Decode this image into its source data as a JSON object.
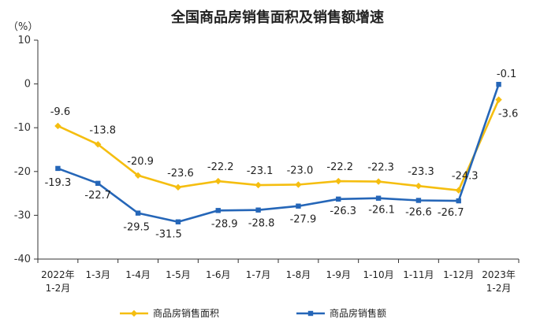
{
  "chart_data": {
    "type": "line",
    "title": "全国商品房销售面积及销售额增速",
    "unit": "（%）",
    "ylim": [
      -40,
      10
    ],
    "yticks": [
      "10",
      "0",
      "-10",
      "-20",
      "-30",
      "-40"
    ],
    "categories": [
      [
        "2022年",
        "1-2月"
      ],
      [
        "1-3月"
      ],
      [
        "1-4月"
      ],
      [
        "1-5月"
      ],
      [
        "1-6月"
      ],
      [
        "1-7月"
      ],
      [
        "1-8月"
      ],
      [
        "1-9月"
      ],
      [
        "1-10月"
      ],
      [
        "1-11月"
      ],
      [
        "1-12月"
      ],
      [
        "2023年",
        "1-2月"
      ]
    ],
    "grid": false,
    "legend_position": "bottom",
    "series": [
      {
        "name": "商品房销售面积",
        "color": "#F5BE10",
        "marker": "diamond",
        "values": [
          -9.6,
          -13.8,
          -20.9,
          -23.6,
          -22.2,
          -23.1,
          -23.0,
          -22.2,
          -22.3,
          -23.3,
          -24.3,
          -3.6
        ],
        "labels": [
          "-9.6",
          "-13.8",
          "-20.9",
          "-23.6",
          "-22.2",
          "-23.1",
          "-23.0",
          "-22.2",
          "-22.3",
          "-23.3",
          "-24.3",
          "-3.6"
        ]
      },
      {
        "name": "商品房销售额",
        "color": "#2566B8",
        "marker": "square",
        "values": [
          -19.3,
          -22.7,
          -29.5,
          -31.5,
          -28.9,
          -28.8,
          -27.9,
          -26.3,
          -26.1,
          -26.6,
          -26.7,
          -0.1
        ],
        "labels": [
          "-19.3",
          "-22.7",
          "-29.5",
          "-31.5",
          "-28.9",
          "-28.8",
          "-27.9",
          "-26.3",
          "-26.1",
          "-26.6",
          "-26.7",
          "-0.1"
        ]
      }
    ]
  }
}
